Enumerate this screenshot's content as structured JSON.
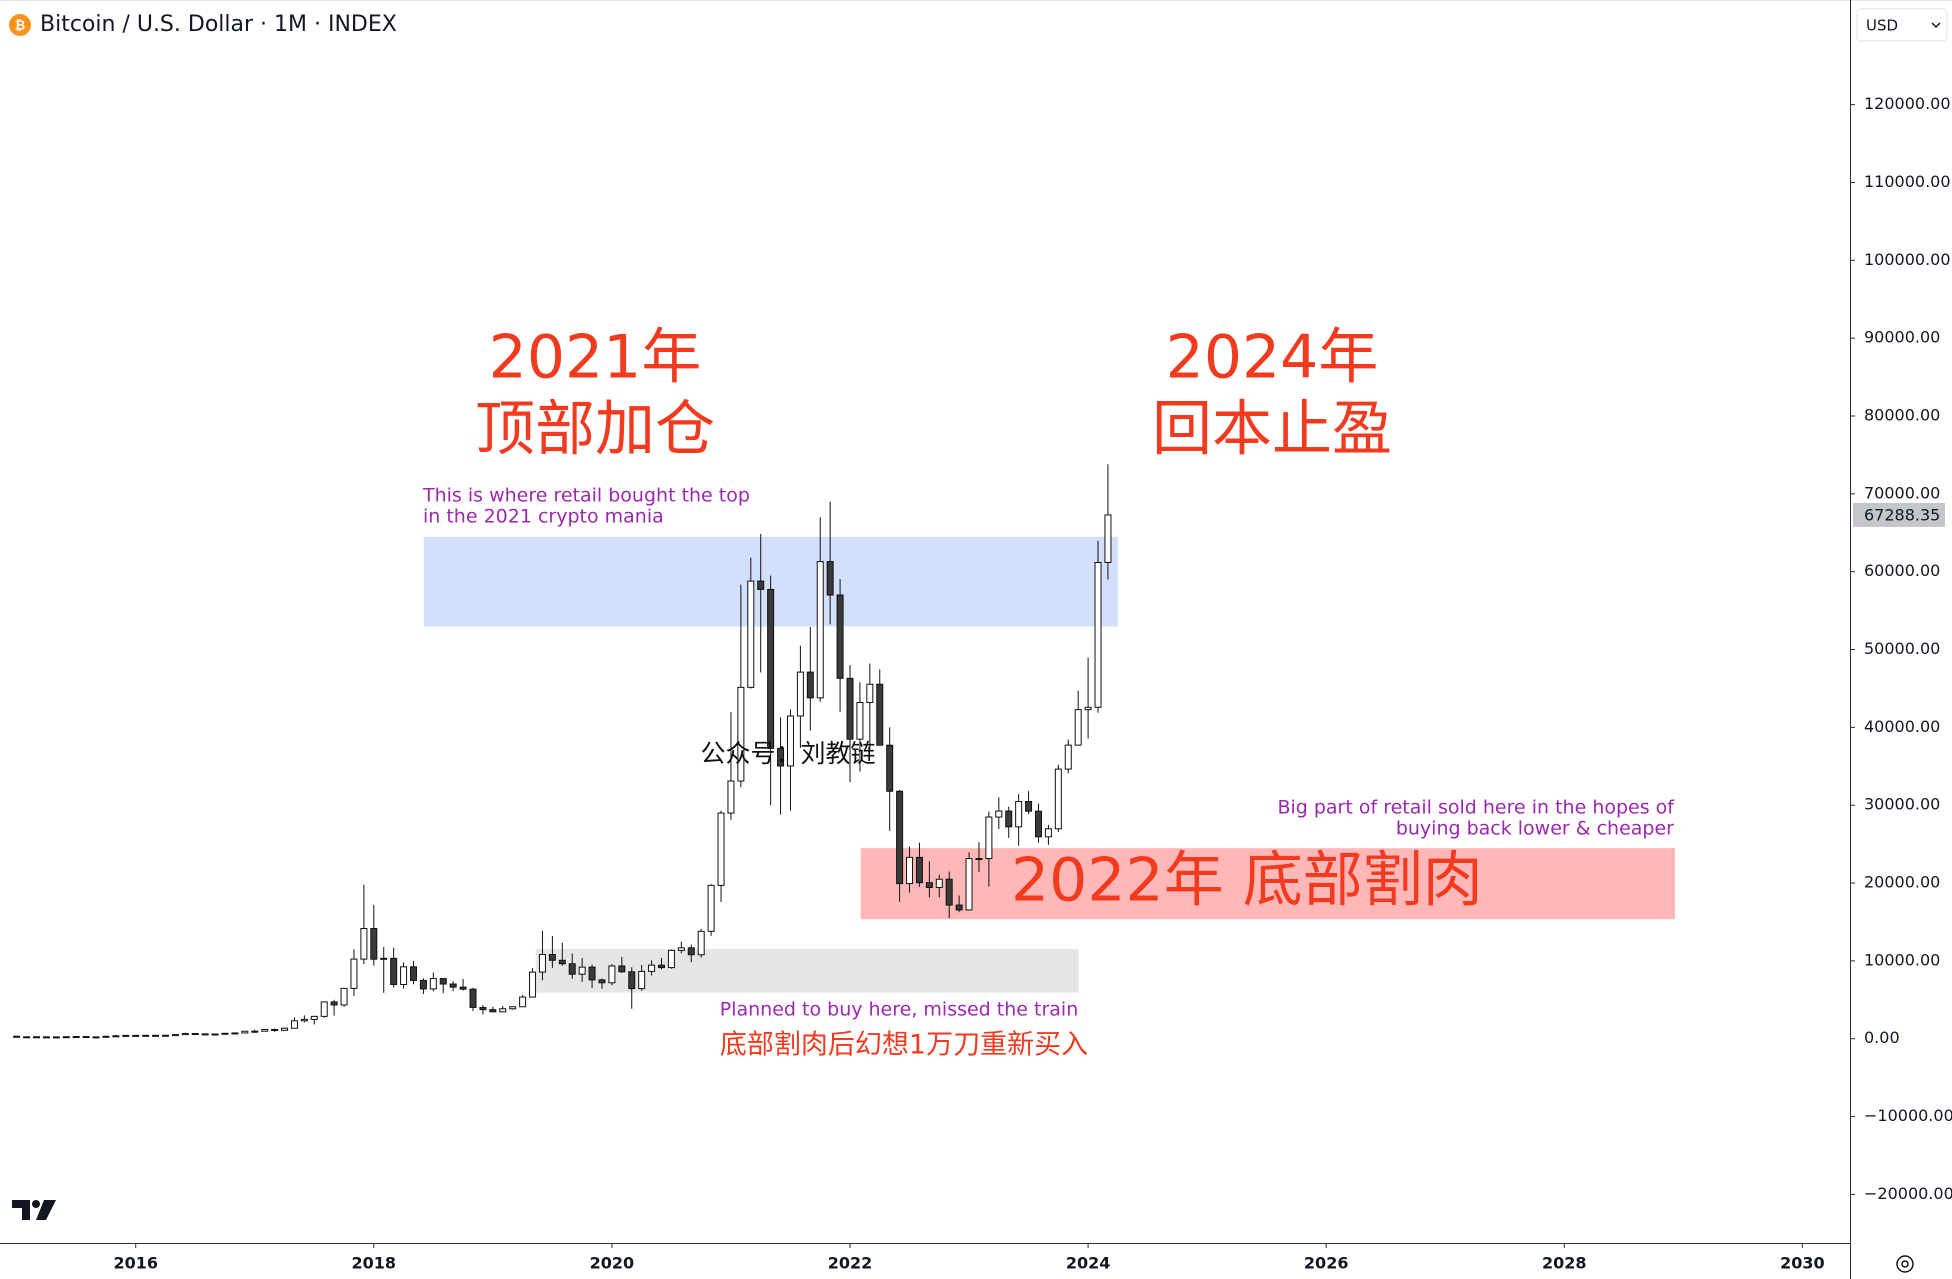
{
  "chart_data": {
    "type": "candlestick",
    "title": "Bitcoin / U.S. Dollar · 1M · INDEX",
    "currency": "USD",
    "x": [
      "2015-01",
      "2015-02",
      "2015-03",
      "2015-04",
      "2015-05",
      "2015-06",
      "2015-07",
      "2015-08",
      "2015-09",
      "2015-10",
      "2015-11",
      "2015-12",
      "2016-01",
      "2016-02",
      "2016-03",
      "2016-04",
      "2016-05",
      "2016-06",
      "2016-07",
      "2016-08",
      "2016-09",
      "2016-10",
      "2016-11",
      "2016-12",
      "2017-01",
      "2017-02",
      "2017-03",
      "2017-04",
      "2017-05",
      "2017-06",
      "2017-07",
      "2017-08",
      "2017-09",
      "2017-10",
      "2017-11",
      "2017-12",
      "2018-01",
      "2018-02",
      "2018-03",
      "2018-04",
      "2018-05",
      "2018-06",
      "2018-07",
      "2018-08",
      "2018-09",
      "2018-10",
      "2018-11",
      "2018-12",
      "2019-01",
      "2019-02",
      "2019-03",
      "2019-04",
      "2019-05",
      "2019-06",
      "2019-07",
      "2019-08",
      "2019-09",
      "2019-10",
      "2019-11",
      "2019-12",
      "2020-01",
      "2020-02",
      "2020-03",
      "2020-04",
      "2020-05",
      "2020-06",
      "2020-07",
      "2020-08",
      "2020-09",
      "2020-10",
      "2020-11",
      "2020-12",
      "2021-01",
      "2021-02",
      "2021-03",
      "2021-04",
      "2021-05",
      "2021-06",
      "2021-07",
      "2021-08",
      "2021-09",
      "2021-10",
      "2021-11",
      "2021-12",
      "2022-01",
      "2022-02",
      "2022-03",
      "2022-04",
      "2022-05",
      "2022-06",
      "2022-07",
      "2022-08",
      "2022-09",
      "2022-10",
      "2022-11",
      "2022-12",
      "2023-01",
      "2023-02",
      "2023-03",
      "2023-04",
      "2023-05",
      "2023-06",
      "2023-07",
      "2023-08",
      "2023-09",
      "2023-10",
      "2023-11",
      "2023-12",
      "2024-01",
      "2024-02",
      "2024-03"
    ],
    "open": [
      320,
      217,
      254,
      244,
      236,
      230,
      263,
      284,
      230,
      236,
      314,
      378,
      430,
      369,
      437,
      416,
      448,
      531,
      673,
      624,
      575,
      609,
      700,
      745,
      964,
      970,
      1190,
      1080,
      1350,
      2300,
      2480,
      2870,
      4730,
      4340,
      6470,
      10230,
      14160,
      10220,
      10330,
      6970,
      9240,
      7490,
      6400,
      7730,
      7030,
      6630,
      6370,
      4020,
      3740,
      3460,
      3850,
      4110,
      5350,
      8560,
      10820,
      10080,
      9630,
      8290,
      9200,
      7560,
      7190,
      9350,
      8600,
      6440,
      8650,
      9450,
      9140,
      11350,
      11680,
      10790,
      13800,
      19700,
      28990,
      33110,
      45140,
      58790,
      57720,
      37300,
      35040,
      41460,
      47100,
      43790,
      61300,
      57000,
      46300,
      38480,
      43190,
      45540,
      37710,
      31790,
      19930,
      23300,
      20050,
      19430,
      20490,
      17170,
      16550,
      23140,
      23150,
      28480,
      29250,
      27220,
      30480,
      29230,
      25940,
      26970,
      34640,
      37720,
      42280,
      42580,
      61180
    ],
    "high": [
      320,
      265,
      300,
      260,
      247,
      268,
      315,
      286,
      245,
      335,
      495,
      465,
      465,
      445,
      440,
      466,
      550,
      780,
      700,
      630,
      630,
      720,
      760,
      980,
      1150,
      1210,
      1300,
      1420,
      2760,
      3000,
      2950,
      4780,
      5000,
      6470,
      11500,
      19800,
      17200,
      11800,
      11700,
      9800,
      10000,
      7770,
      8500,
      7760,
      7400,
      7680,
      6550,
      4320,
      4110,
      4200,
      4110,
      5640,
      9070,
      13880,
      13200,
      12330,
      10950,
      10370,
      9510,
      7750,
      9580,
      10500,
      9190,
      9460,
      10070,
      10390,
      11450,
      12480,
      12100,
      14100,
      19860,
      29300,
      41950,
      58350,
      61800,
      64860,
      59500,
      41300,
      42320,
      50500,
      52900,
      66990,
      69000,
      59050,
      48000,
      45800,
      48200,
      47450,
      40000,
      31960,
      24670,
      25200,
      22800,
      21100,
      21480,
      18400,
      23950,
      25250,
      29200,
      31000,
      29820,
      31430,
      31800,
      30200,
      27480,
      35200,
      38430,
      44700,
      48970,
      63950,
      73800
    ],
    "low": [
      170,
      212,
      235,
      214,
      225,
      220,
      253,
      198,
      225,
      236,
      300,
      350,
      350,
      365,
      405,
      414,
      440,
      520,
      610,
      470,
      570,
      605,
      690,
      745,
      750,
      920,
      890,
      1080,
      1350,
      2100,
      1840,
      2700,
      2970,
      4100,
      5500,
      9600,
      9400,
      5900,
      6600,
      6450,
      7000,
      5750,
      6100,
      5880,
      6130,
      6200,
      3560,
      3130,
      3400,
      3390,
      3730,
      4080,
      5330,
      7510,
      9100,
      9390,
      7710,
      7300,
      6520,
      6430,
      6870,
      8450,
      3850,
      6160,
      8130,
      8920,
      8990,
      10970,
      9830,
      10420,
      13220,
      17570,
      28130,
      32300,
      45000,
      47050,
      30000,
      28800,
      29280,
      37350,
      39600,
      43290,
      53250,
      42000,
      32950,
      34320,
      37200,
      37700,
      26700,
      17600,
      18780,
      19540,
      18150,
      18190,
      15480,
      16260,
      16500,
      21400,
      19550,
      26940,
      25800,
      24800,
      28860,
      25170,
      24900,
      26550,
      34110,
      37650,
      38550,
      41900,
      59000
    ],
    "close": [
      217,
      254,
      244,
      236,
      230,
      263,
      284,
      230,
      236,
      314,
      378,
      430,
      369,
      437,
      416,
      448,
      531,
      673,
      624,
      575,
      609,
      700,
      745,
      964,
      970,
      1190,
      1080,
      1350,
      2300,
      2480,
      2870,
      4730,
      4340,
      6470,
      10230,
      14160,
      10220,
      10330,
      6970,
      9240,
      7490,
      6400,
      7730,
      7030,
      6630,
      6370,
      4020,
      3740,
      3460,
      3850,
      4110,
      5350,
      8560,
      10820,
      10080,
      9630,
      8290,
      9200,
      7560,
      7190,
      9350,
      8600,
      6440,
      8650,
      9450,
      9140,
      11350,
      11680,
      10790,
      13800,
      19700,
      28990,
      33110,
      45140,
      58790,
      57720,
      37300,
      35040,
      41460,
      47100,
      43790,
      61300,
      57000,
      46300,
      38480,
      43190,
      45540,
      37710,
      31790,
      19930,
      23300,
      20050,
      19430,
      20490,
      17170,
      16550,
      23140,
      23150,
      28480,
      29250,
      27220,
      30480,
      29230,
      25940,
      26970,
      34640,
      37720,
      42280,
      42580,
      61180,
      67288.35
    ],
    "up_color": "#ffffff",
    "down_color": "#3a3a3a",
    "wick_color": "#111111",
    "xlim": [
      2014.86,
      2030.4
    ],
    "xticks": [
      2016,
      2018,
      2020,
      2022,
      2024,
      2026,
      2028,
      2030
    ],
    "ylim": [
      -26240,
      133440
    ],
    "yticks": [
      {
        "value": -20000,
        "label": "−20000.00"
      },
      {
        "value": -10000,
        "label": "−10000.00"
      },
      {
        "value": 0,
        "label": "0.00"
      },
      {
        "value": 10000,
        "label": "10000.00"
      },
      {
        "value": 20000,
        "label": "20000.00"
      },
      {
        "value": 30000,
        "label": "30000.00"
      },
      {
        "value": 40000,
        "label": "40000.00"
      },
      {
        "value": 50000,
        "label": "50000.00"
      },
      {
        "value": 60000,
        "label": "60000.00"
      },
      {
        "value": 70000,
        "label": "70000.00"
      },
      {
        "value": 80000,
        "label": "80000.00"
      },
      {
        "value": 90000,
        "label": "90000.00"
      },
      {
        "value": 100000,
        "label": "100000.00"
      },
      {
        "value": 110000,
        "label": "110000.00"
      },
      {
        "value": 120000,
        "label": "120000.00"
      }
    ],
    "grid": false,
    "last_price": 67288.35,
    "zones": [
      {
        "x": [
          2018.42,
          2024.25
        ],
        "y": [
          52960,
          64480
        ],
        "color": "#d3e0fb"
      },
      {
        "x": [
          2022.09,
          2028.93
        ],
        "y": [
          15360,
          24480
        ],
        "color": "#ffb7b7"
      },
      {
        "x": [
          2019.36,
          2023.92
        ],
        "y": [
          5920,
          11520
        ],
        "color": "#e6e6e6"
      }
    ],
    "annotations": [
      {
        "lines": [
          "2021年",
          "顶部加仓"
        ]
      },
      {
        "lines": [
          "2024年",
          "回本止盈"
        ]
      },
      {
        "lines": [
          "This is where retail bought the top",
          "in the 2021 crypto mania"
        ]
      },
      {
        "lines": [
          "Big part of retail sold here in the hopes of",
          "buying back lower & cheaper"
        ]
      },
      {
        "lines": [
          "2022年 底部割肉"
        ]
      },
      {
        "lines": [
          "Planned to buy here, missed the train"
        ]
      },
      {
        "lines": [
          "底部割肉后幻想1万刀重新买入"
        ]
      },
      {
        "lines": [
          "公众号：刘教链"
        ]
      }
    ]
  }
}
